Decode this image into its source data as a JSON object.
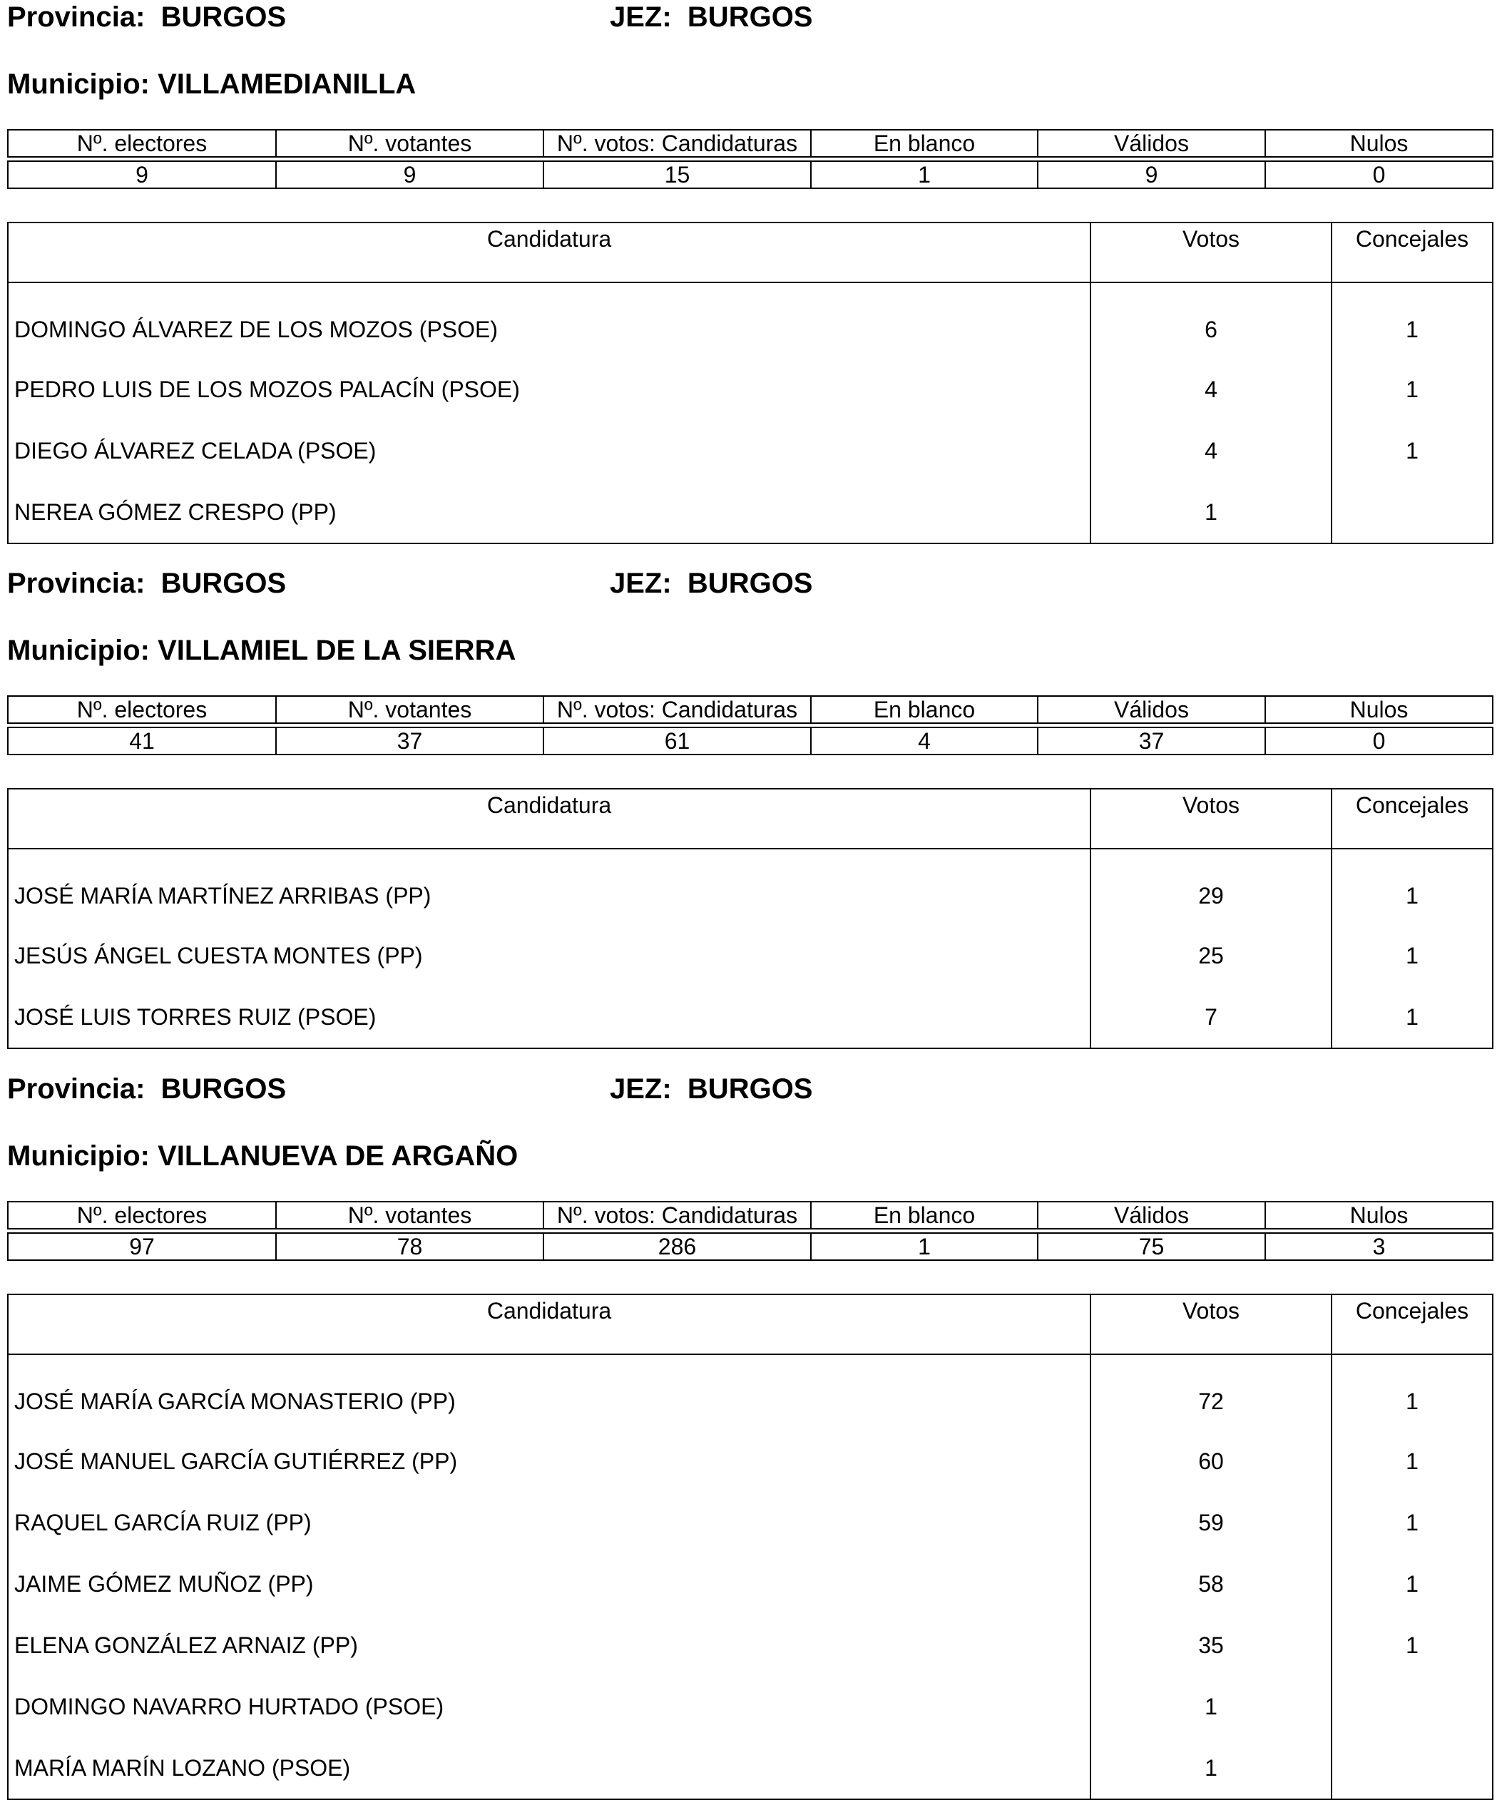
{
  "labels": {
    "provincia": "Provincia:",
    "jez": "JEZ:",
    "municipio": "Municipio:",
    "stats_headers": [
      "Nº. electores",
      "Nº. votantes",
      "Nº. votos: Candidaturas",
      "En blanco",
      "Válidos",
      "Nulos"
    ],
    "cand_headers": [
      "Candidatura",
      "Votos",
      "Concejales"
    ]
  },
  "sections": [
    {
      "provincia": "BURGOS",
      "jez": "BURGOS",
      "municipio": "VILLAMEDIANILLA",
      "stats": [
        "9",
        "9",
        "15",
        "1",
        "9",
        "0"
      ],
      "candidates": [
        {
          "name": "DOMINGO ÁLVAREZ DE LOS MOZOS (PSOE)",
          "votos": "6",
          "concejales": "1"
        },
        {
          "name": "PEDRO LUIS DE LOS MOZOS PALACÍN (PSOE)",
          "votos": "4",
          "concejales": "1"
        },
        {
          "name": "DIEGO ÁLVAREZ CELADA (PSOE)",
          "votos": "4",
          "concejales": "1"
        },
        {
          "name": "NEREA GÓMEZ CRESPO (PP)",
          "votos": "1",
          "concejales": ""
        }
      ]
    },
    {
      "provincia": "BURGOS",
      "jez": "BURGOS",
      "municipio": "VILLAMIEL DE LA SIERRA",
      "stats": [
        "41",
        "37",
        "61",
        "4",
        "37",
        "0"
      ],
      "candidates": [
        {
          "name": "JOSÉ MARÍA MARTÍNEZ ARRIBAS (PP)",
          "votos": "29",
          "concejales": "1"
        },
        {
          "name": "JESÚS ÁNGEL CUESTA MONTES (PP)",
          "votos": "25",
          "concejales": "1"
        },
        {
          "name": "JOSÉ LUIS TORRES RUIZ (PSOE)",
          "votos": "7",
          "concejales": "1"
        }
      ]
    },
    {
      "provincia": "BURGOS",
      "jez": "BURGOS",
      "municipio": "VILLANUEVA DE ARGAÑO",
      "stats": [
        "97",
        "78",
        "286",
        "1",
        "75",
        "3"
      ],
      "candidates": [
        {
          "name": "JOSÉ MARÍA GARCÍA MONASTERIO (PP)",
          "votos": "72",
          "concejales": "1"
        },
        {
          "name": "JOSÉ MANUEL GARCÍA GUTIÉRREZ (PP)",
          "votos": "60",
          "concejales": "1"
        },
        {
          "name": "RAQUEL GARCÍA RUIZ (PP)",
          "votos": "59",
          "concejales": "1"
        },
        {
          "name": "JAIME GÓMEZ MUÑOZ (PP)",
          "votos": "58",
          "concejales": "1"
        },
        {
          "name": "ELENA GONZÁLEZ ARNAIZ (PP)",
          "votos": "35",
          "concejales": "1"
        },
        {
          "name": "DOMINGO NAVARRO HURTADO (PSOE)",
          "votos": "1",
          "concejales": ""
        },
        {
          "name": "MARÍA MARÍN LOZANO (PSOE)",
          "votos": "1",
          "concejales": ""
        }
      ]
    }
  ]
}
